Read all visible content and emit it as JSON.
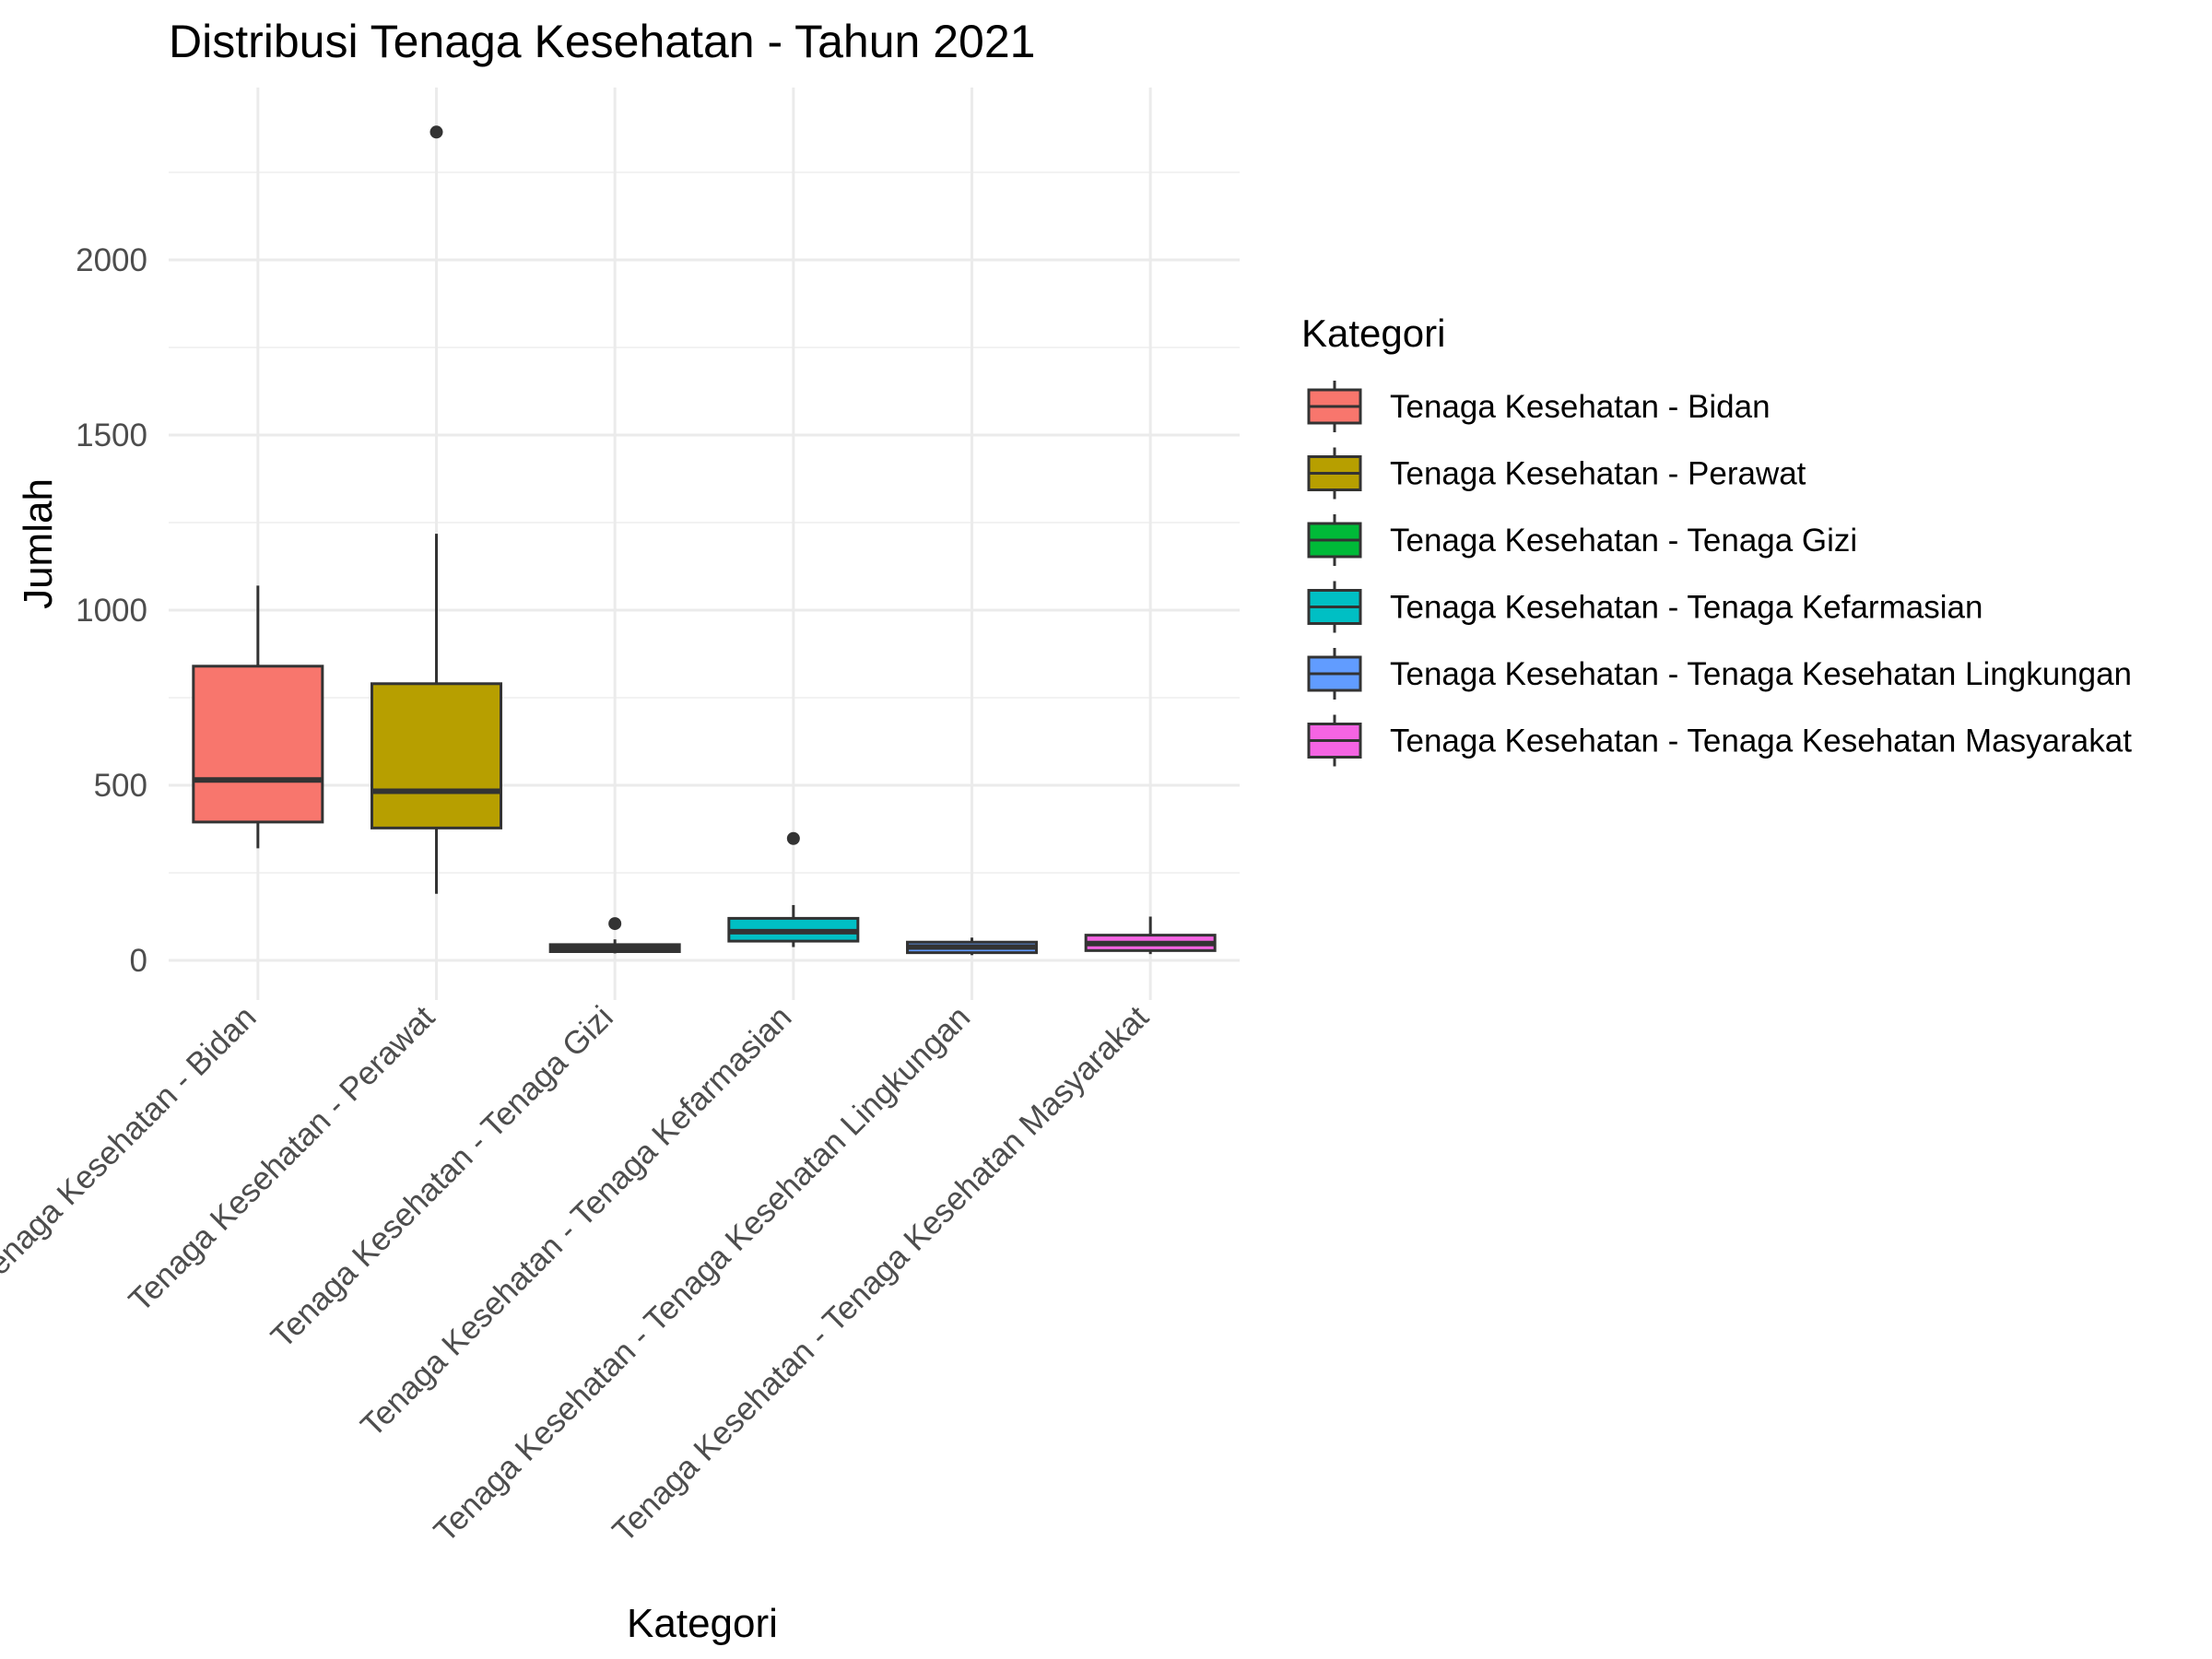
{
  "chart_data": {
    "type": "boxplot",
    "title": "Distribusi Tenaga Kesehatan - Tahun 2021",
    "xlabel": "Kategori",
    "ylabel": "Jumlah",
    "ylim": [
      -100,
      2450
    ],
    "yticks": [
      0,
      500,
      1000,
      1500,
      2000
    ],
    "y_tick_labels": [
      "0",
      "500",
      "1000",
      "1500",
      "2000"
    ],
    "grid": true,
    "legend": {
      "title": "Kategori",
      "position": "right"
    },
    "categories": [
      "Tenaga Kesehatan - Bidan",
      "Tenaga Kesehatan - Perawat",
      "Tenaga Kesehatan - Tenaga Gizi",
      "Tenaga Kesehatan - Tenaga Kefarmasian",
      "Tenaga Kesehatan - Tenaga Kesehatan Lingkungan",
      "Tenaga Kesehatan - Tenaga Kesehatan Masyarakat"
    ],
    "colors": [
      "#F8766D",
      "#B79F00",
      "#00BA38",
      "#00BFC4",
      "#619CFF",
      "#F564E3"
    ],
    "boxes": [
      {
        "whisker_low": 320,
        "q1": 395,
        "median": 515,
        "q3": 840,
        "whisker_high": 1070,
        "outliers": []
      },
      {
        "whisker_low": 190,
        "q1": 378,
        "median": 483,
        "q3": 790,
        "whisker_high": 1218,
        "outliers": [
          2365
        ]
      },
      {
        "whisker_low": 20,
        "q1": 25,
        "median": 35,
        "q3": 45,
        "whisker_high": 60,
        "outliers": [
          105
        ]
      },
      {
        "whisker_low": 38,
        "q1": 55,
        "median": 82,
        "q3": 120,
        "whisker_high": 158,
        "outliers": [
          348
        ]
      },
      {
        "whisker_low": 15,
        "q1": 22,
        "median": 38,
        "q3": 52,
        "whisker_high": 65,
        "outliers": []
      },
      {
        "whisker_low": 18,
        "q1": 28,
        "median": 48,
        "q3": 72,
        "whisker_high": 125,
        "outliers": []
      }
    ]
  }
}
